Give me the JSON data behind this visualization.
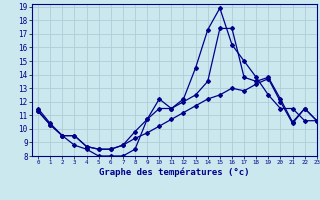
{
  "xlabel": "Graphe des températures (°c)",
  "xlim": [
    -0.5,
    23
  ],
  "ylim": [
    8,
    19.2
  ],
  "yticks": [
    8,
    9,
    10,
    11,
    12,
    13,
    14,
    15,
    16,
    17,
    18,
    19
  ],
  "xticks": [
    0,
    1,
    2,
    3,
    4,
    5,
    6,
    7,
    8,
    9,
    10,
    11,
    12,
    13,
    14,
    15,
    16,
    17,
    18,
    19,
    20,
    21,
    22,
    23
  ],
  "background_color": "#cce8ef",
  "grid_color": "#b0cdd6",
  "line_color": "#00008b",
  "line1_x": [
    0,
    1,
    2,
    3,
    4,
    5,
    6,
    7,
    8,
    9,
    10,
    11,
    12,
    13,
    14,
    15,
    16,
    17,
    18,
    19,
    20,
    21,
    22,
    23
  ],
  "line1_y": [
    11.5,
    10.4,
    9.5,
    8.8,
    8.5,
    8.0,
    8.0,
    8.0,
    8.5,
    10.7,
    12.2,
    11.5,
    12.2,
    14.5,
    17.3,
    18.9,
    16.2,
    15.0,
    13.8,
    12.5,
    11.5,
    11.5,
    10.6,
    10.6
  ],
  "line2_x": [
    0,
    1,
    2,
    3,
    4,
    5,
    6,
    7,
    8,
    9,
    10,
    11,
    12,
    13,
    14,
    15,
    16,
    17,
    18,
    19,
    20,
    21,
    22,
    23
  ],
  "line2_y": [
    11.3,
    10.3,
    9.5,
    9.5,
    8.7,
    8.5,
    8.5,
    8.8,
    9.8,
    10.7,
    11.5,
    11.5,
    12.0,
    12.5,
    13.5,
    17.4,
    17.4,
    13.8,
    13.5,
    13.8,
    12.2,
    10.5,
    11.5,
    10.6
  ],
  "line3_x": [
    0,
    1,
    2,
    3,
    4,
    5,
    6,
    7,
    8,
    9,
    10,
    11,
    12,
    13,
    14,
    15,
    16,
    17,
    18,
    19,
    20,
    21,
    22,
    23
  ],
  "line3_y": [
    11.3,
    10.3,
    9.5,
    9.5,
    8.7,
    8.5,
    8.5,
    8.8,
    9.3,
    9.7,
    10.2,
    10.7,
    11.2,
    11.7,
    12.2,
    12.5,
    13.0,
    12.8,
    13.3,
    13.7,
    12.0,
    10.4,
    11.5,
    10.6
  ]
}
